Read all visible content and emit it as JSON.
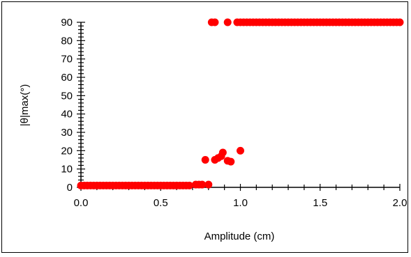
{
  "chart_data": {
    "type": "scatter",
    "title": "",
    "xlabel": "Amplitude (cm)",
    "ylabel": "|θ|max(°)",
    "xlim": [
      0,
      2
    ],
    "ylim": [
      0,
      90
    ],
    "x_ticks": [
      {
        "value": 0,
        "label": "0.0"
      },
      {
        "value": 0.5,
        "label": "0.5"
      },
      {
        "value": 1.0,
        "label": "1.0"
      },
      {
        "value": 1.5,
        "label": "1.5"
      },
      {
        "value": 2.0,
        "label": "2.0"
      }
    ],
    "y_ticks": [
      {
        "value": 0,
        "label": "0"
      },
      {
        "value": 10,
        "label": "10"
      },
      {
        "value": 20,
        "label": "20"
      },
      {
        "value": 30,
        "label": "30"
      },
      {
        "value": 40,
        "label": "40"
      },
      {
        "value": 50,
        "label": "50"
      },
      {
        "value": 60,
        "label": "60"
      },
      {
        "value": 70,
        "label": "70"
      },
      {
        "value": 80,
        "label": "80"
      },
      {
        "value": 90,
        "label": "90"
      }
    ],
    "grid": false,
    "legend": "none",
    "marker_color": "#ff0000",
    "series": [
      {
        "points": [
          [
            0.0,
            1
          ],
          [
            0.02,
            1
          ],
          [
            0.04,
            1
          ],
          [
            0.06,
            1
          ],
          [
            0.08,
            1
          ],
          [
            0.1,
            1
          ],
          [
            0.12,
            1
          ],
          [
            0.14,
            1
          ],
          [
            0.16,
            1
          ],
          [
            0.18,
            1
          ],
          [
            0.2,
            1
          ],
          [
            0.22,
            1
          ],
          [
            0.24,
            1
          ],
          [
            0.26,
            1
          ],
          [
            0.28,
            1
          ],
          [
            0.3,
            1
          ],
          [
            0.32,
            1
          ],
          [
            0.34,
            1
          ],
          [
            0.36,
            1
          ],
          [
            0.38,
            1
          ],
          [
            0.4,
            1
          ],
          [
            0.42,
            1
          ],
          [
            0.44,
            1
          ],
          [
            0.46,
            1
          ],
          [
            0.48,
            1
          ],
          [
            0.5,
            1
          ],
          [
            0.52,
            1
          ],
          [
            0.54,
            1
          ],
          [
            0.56,
            1
          ],
          [
            0.58,
            1
          ],
          [
            0.6,
            1
          ],
          [
            0.62,
            1
          ],
          [
            0.64,
            1
          ],
          [
            0.66,
            1
          ],
          [
            0.68,
            1
          ],
          [
            0.72,
            1.5
          ],
          [
            0.74,
            1.5
          ],
          [
            0.76,
            1.5
          ],
          [
            0.8,
            1.5
          ],
          [
            0.78,
            15
          ],
          [
            0.84,
            15
          ],
          [
            0.86,
            16
          ],
          [
            0.88,
            17
          ],
          [
            0.89,
            19
          ],
          [
            0.92,
            14.5
          ],
          [
            0.94,
            14
          ],
          [
            1.0,
            20
          ],
          [
            0.82,
            90
          ],
          [
            0.84,
            90
          ],
          [
            0.92,
            90
          ],
          [
            0.98,
            90
          ],
          [
            1.0,
            90
          ],
          [
            1.02,
            90
          ],
          [
            1.04,
            90
          ],
          [
            1.06,
            90
          ],
          [
            1.08,
            90
          ],
          [
            1.1,
            90
          ],
          [
            1.12,
            90
          ],
          [
            1.14,
            90
          ],
          [
            1.16,
            90
          ],
          [
            1.18,
            90
          ],
          [
            1.2,
            90
          ],
          [
            1.22,
            90
          ],
          [
            1.24,
            90
          ],
          [
            1.26,
            90
          ],
          [
            1.28,
            90
          ],
          [
            1.3,
            90
          ],
          [
            1.32,
            90
          ],
          [
            1.34,
            90
          ],
          [
            1.36,
            90
          ],
          [
            1.38,
            90
          ],
          [
            1.4,
            90
          ],
          [
            1.42,
            90
          ],
          [
            1.44,
            90
          ],
          [
            1.46,
            90
          ],
          [
            1.48,
            90
          ],
          [
            1.5,
            90
          ],
          [
            1.52,
            90
          ],
          [
            1.54,
            90
          ],
          [
            1.56,
            90
          ],
          [
            1.58,
            90
          ],
          [
            1.6,
            90
          ],
          [
            1.62,
            90
          ],
          [
            1.64,
            90
          ],
          [
            1.66,
            90
          ],
          [
            1.68,
            90
          ],
          [
            1.7,
            90
          ],
          [
            1.72,
            90
          ],
          [
            1.74,
            90
          ],
          [
            1.76,
            90
          ],
          [
            1.78,
            90
          ],
          [
            1.8,
            90
          ],
          [
            1.82,
            90
          ],
          [
            1.84,
            90
          ],
          [
            1.86,
            90
          ],
          [
            1.88,
            90
          ],
          [
            1.9,
            90
          ],
          [
            1.92,
            90
          ],
          [
            1.94,
            90
          ],
          [
            1.96,
            90
          ],
          [
            1.98,
            90
          ],
          [
            2.0,
            90
          ]
        ]
      }
    ]
  }
}
